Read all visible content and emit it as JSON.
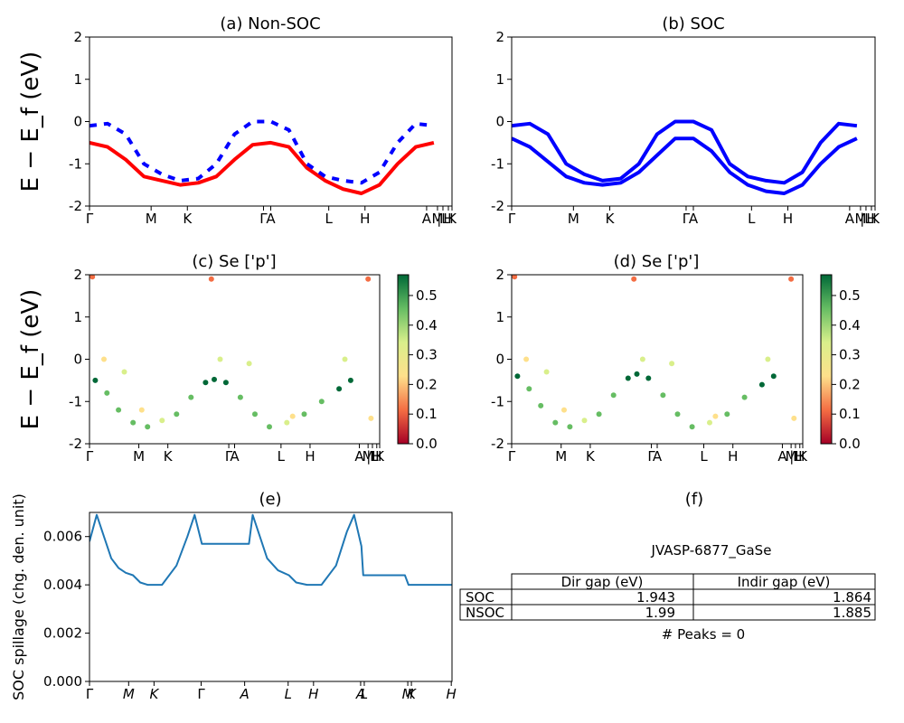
{
  "chart_data": [
    {
      "id": "a",
      "type": "line",
      "title": "(a) Non-SOC",
      "ylabel": "E − E_f (eV)",
      "ylim": [
        -2,
        2
      ],
      "yticks": [
        2,
        1,
        0,
        -1,
        -2
      ],
      "xticklabels": [
        "Γ",
        "M",
        "K",
        "Γ",
        "A",
        "L",
        "H",
        "A",
        "M",
        "|L",
        "H",
        "K"
      ],
      "series": [
        {
          "color": "#ff0000",
          "style": "solid",
          "points": [
            [
              0,
              -0.5
            ],
            [
              0.05,
              -0.6
            ],
            [
              0.1,
              -0.9
            ],
            [
              0.15,
              -1.3
            ],
            [
              0.2,
              -1.4
            ],
            [
              0.25,
              -1.5
            ],
            [
              0.3,
              -1.45
            ],
            [
              0.35,
              -1.3
            ],
            [
              0.4,
              -0.9
            ],
            [
              0.45,
              -0.55
            ],
            [
              0.5,
              -0.5
            ],
            [
              0.55,
              -0.6
            ],
            [
              0.6,
              -1.1
            ],
            [
              0.65,
              -1.4
            ],
            [
              0.7,
              -1.6
            ],
            [
              0.75,
              -1.7
            ],
            [
              0.8,
              -1.5
            ],
            [
              0.85,
              -1.0
            ],
            [
              0.9,
              -0.6
            ],
            [
              0.95,
              -0.5
            ]
          ]
        },
        {
          "color": "#0000ff",
          "style": "dashed",
          "points": [
            [
              0,
              -0.1
            ],
            [
              0.05,
              -0.05
            ],
            [
              0.1,
              -0.3
            ],
            [
              0.15,
              -1.0
            ],
            [
              0.2,
              -1.25
            ],
            [
              0.25,
              -1.4
            ],
            [
              0.3,
              -1.35
            ],
            [
              0.35,
              -1.0
            ],
            [
              0.4,
              -0.3
            ],
            [
              0.45,
              0.0
            ],
            [
              0.5,
              0.0
            ],
            [
              0.55,
              -0.2
            ],
            [
              0.6,
              -1.0
            ],
            [
              0.65,
              -1.3
            ],
            [
              0.7,
              -1.4
            ],
            [
              0.75,
              -1.45
            ],
            [
              0.8,
              -1.2
            ],
            [
              0.85,
              -0.5
            ],
            [
              0.9,
              -0.05
            ],
            [
              0.95,
              -0.1
            ]
          ]
        }
      ]
    },
    {
      "id": "b",
      "type": "line",
      "title": "(b) SOC",
      "ylim": [
        -2,
        2
      ],
      "yticks": [
        2,
        1,
        0,
        -1,
        -2
      ],
      "xticklabels": [
        "Γ",
        "M",
        "K",
        "Γ",
        "A",
        "L",
        "H",
        "A",
        "M",
        "|L",
        "H",
        "K"
      ],
      "series": [
        {
          "color": "#0000ff",
          "style": "solid",
          "points": [
            [
              0,
              -0.4
            ],
            [
              0.05,
              -0.6
            ],
            [
              0.1,
              -0.95
            ],
            [
              0.15,
              -1.3
            ],
            [
              0.2,
              -1.45
            ],
            [
              0.25,
              -1.5
            ],
            [
              0.3,
              -1.45
            ],
            [
              0.35,
              -1.2
            ],
            [
              0.4,
              -0.8
            ],
            [
              0.45,
              -0.4
            ],
            [
              0.5,
              -0.4
            ],
            [
              0.55,
              -0.7
            ],
            [
              0.6,
              -1.2
            ],
            [
              0.65,
              -1.5
            ],
            [
              0.7,
              -1.65
            ],
            [
              0.75,
              -1.7
            ],
            [
              0.8,
              -1.5
            ],
            [
              0.85,
              -1.0
            ],
            [
              0.9,
              -0.6
            ],
            [
              0.95,
              -0.4
            ]
          ]
        },
        {
          "color": "#0000ff",
          "style": "solid",
          "points": [
            [
              0,
              -0.1
            ],
            [
              0.05,
              -0.05
            ],
            [
              0.1,
              -0.3
            ],
            [
              0.15,
              -1.0
            ],
            [
              0.2,
              -1.25
            ],
            [
              0.25,
              -1.4
            ],
            [
              0.3,
              -1.35
            ],
            [
              0.35,
              -1.0
            ],
            [
              0.4,
              -0.3
            ],
            [
              0.45,
              0.0
            ],
            [
              0.5,
              0.0
            ],
            [
              0.55,
              -0.2
            ],
            [
              0.6,
              -1.0
            ],
            [
              0.65,
              -1.3
            ],
            [
              0.7,
              -1.4
            ],
            [
              0.75,
              -1.45
            ],
            [
              0.8,
              -1.2
            ],
            [
              0.85,
              -0.5
            ],
            [
              0.9,
              -0.05
            ],
            [
              0.95,
              -0.1
            ]
          ]
        }
      ]
    },
    {
      "id": "c",
      "type": "scatter",
      "title": "(c)  Se ['p']",
      "ylabel": "E − E_f (eV)",
      "ylim": [
        -2,
        2
      ],
      "yticks": [
        2,
        1,
        0,
        -1,
        -2
      ],
      "xticklabels": [
        "Γ",
        "M",
        "K",
        "Γ",
        "A",
        "L",
        "H",
        "A",
        "M",
        "|L",
        "H",
        "K"
      ],
      "colorbar": {
        "ticks": [
          "0.0",
          "0.1",
          "0.2",
          "0.3",
          "0.4",
          "0.5"
        ],
        "colors": [
          "#a50026",
          "#f46d43",
          "#fee08b",
          "#d9ef8b",
          "#66bd63",
          "#006837"
        ]
      },
      "points": [
        [
          0.02,
          -0.5,
          0.52
        ],
        [
          0.06,
          -0.8,
          0.5
        ],
        [
          0.1,
          -1.2,
          0.45
        ],
        [
          0.15,
          -1.5,
          0.42
        ],
        [
          0.2,
          -1.6,
          0.42
        ],
        [
          0.25,
          -1.45,
          0.38
        ],
        [
          0.3,
          -1.3,
          0.4
        ],
        [
          0.35,
          -0.9,
          0.47
        ],
        [
          0.4,
          -0.55,
          0.53
        ],
        [
          0.43,
          -0.48,
          0.56
        ],
        [
          0.47,
          -0.55,
          0.52
        ],
        [
          0.52,
          -0.9,
          0.48
        ],
        [
          0.57,
          -1.3,
          0.42
        ],
        [
          0.62,
          -1.6,
          0.4
        ],
        [
          0.68,
          -1.5,
          0.38
        ],
        [
          0.74,
          -1.3,
          0.4
        ],
        [
          0.8,
          -1.0,
          0.47
        ],
        [
          0.86,
          -0.7,
          0.52
        ],
        [
          0.9,
          -0.5,
          0.55
        ],
        [
          0.05,
          0.0,
          0.28
        ],
        [
          0.12,
          -0.3,
          0.3
        ],
        [
          0.18,
          -1.2,
          0.25
        ],
        [
          0.45,
          0.0,
          0.32
        ],
        [
          0.55,
          -0.1,
          0.3
        ],
        [
          0.7,
          -1.35,
          0.2
        ],
        [
          0.88,
          0.0,
          0.3
        ],
        [
          0.97,
          -1.4,
          0.2
        ],
        [
          0.01,
          1.95,
          0.15
        ],
        [
          0.42,
          1.9,
          0.12
        ],
        [
          0.96,
          1.9,
          0.12
        ]
      ]
    },
    {
      "id": "d",
      "type": "scatter",
      "title": "(d) Se ['p']",
      "ylim": [
        -2,
        2
      ],
      "yticks": [
        2,
        1,
        0,
        -1,
        -2
      ],
      "xticklabels": [
        "Γ",
        "M",
        "K",
        "Γ",
        "A",
        "L",
        "H",
        "A",
        "M",
        "|L",
        "H",
        "K"
      ],
      "colorbar": {
        "ticks": [
          "0.0",
          "0.1",
          "0.2",
          "0.3",
          "0.4",
          "0.5"
        ],
        "colors": [
          "#a50026",
          "#f46d43",
          "#fee08b",
          "#d9ef8b",
          "#66bd63",
          "#006837"
        ]
      },
      "points": [
        [
          0.02,
          -0.4,
          0.52
        ],
        [
          0.06,
          -0.7,
          0.5
        ],
        [
          0.1,
          -1.1,
          0.45
        ],
        [
          0.15,
          -1.5,
          0.42
        ],
        [
          0.2,
          -1.6,
          0.42
        ],
        [
          0.25,
          -1.45,
          0.38
        ],
        [
          0.3,
          -1.3,
          0.4
        ],
        [
          0.35,
          -0.85,
          0.47
        ],
        [
          0.4,
          -0.45,
          0.53
        ],
        [
          0.43,
          -0.35,
          0.56
        ],
        [
          0.47,
          -0.45,
          0.52
        ],
        [
          0.52,
          -0.85,
          0.48
        ],
        [
          0.57,
          -1.3,
          0.42
        ],
        [
          0.62,
          -1.6,
          0.4
        ],
        [
          0.68,
          -1.5,
          0.38
        ],
        [
          0.74,
          -1.3,
          0.4
        ],
        [
          0.8,
          -0.9,
          0.47
        ],
        [
          0.86,
          -0.6,
          0.52
        ],
        [
          0.9,
          -0.4,
          0.55
        ],
        [
          0.05,
          0.0,
          0.28
        ],
        [
          0.12,
          -0.3,
          0.3
        ],
        [
          0.18,
          -1.2,
          0.25
        ],
        [
          0.45,
          0.0,
          0.32
        ],
        [
          0.55,
          -0.1,
          0.3
        ],
        [
          0.7,
          -1.35,
          0.2
        ],
        [
          0.88,
          0.0,
          0.3
        ],
        [
          0.97,
          -1.4,
          0.2
        ],
        [
          0.01,
          1.95,
          0.15
        ],
        [
          0.42,
          1.9,
          0.12
        ],
        [
          0.96,
          1.9,
          0.12
        ]
      ]
    },
    {
      "id": "e",
      "type": "line",
      "title": "(e)",
      "ylabel": "SOC spillage (chg. den. unit)",
      "ylim": [
        0,
        0.007
      ],
      "yticks": [
        "0.000",
        "0.002",
        "0.004",
        "0.006"
      ],
      "xticklabels": [
        "Γ",
        "M",
        "K",
        "Γ",
        "A",
        "L",
        "H",
        "A",
        "L",
        "M",
        "K",
        "H"
      ],
      "series": [
        {
          "color": "#1f77b4",
          "points": [
            [
              0,
              0.0058
            ],
            [
              0.02,
              0.0069
            ],
            [
              0.04,
              0.006
            ],
            [
              0.06,
              0.0051
            ],
            [
              0.08,
              0.0047
            ],
            [
              0.1,
              0.0045
            ],
            [
              0.12,
              0.0044
            ],
            [
              0.14,
              0.0041
            ],
            [
              0.16,
              0.004
            ],
            [
              0.2,
              0.004
            ],
            [
              0.24,
              0.0048
            ],
            [
              0.27,
              0.006
            ],
            [
              0.29,
              0.0069
            ],
            [
              0.31,
              0.0057
            ],
            [
              0.35,
              0.0057
            ],
            [
              0.4,
              0.0057
            ],
            [
              0.44,
              0.0057
            ],
            [
              0.45,
              0.0069
            ],
            [
              0.47,
              0.006
            ],
            [
              0.49,
              0.0051
            ],
            [
              0.52,
              0.0046
            ],
            [
              0.55,
              0.0044
            ],
            [
              0.57,
              0.0041
            ],
            [
              0.6,
              0.004
            ],
            [
              0.64,
              0.004
            ],
            [
              0.68,
              0.0048
            ],
            [
              0.71,
              0.0062
            ],
            [
              0.73,
              0.0069
            ],
            [
              0.75,
              0.0056
            ],
            [
              0.755,
              0.0044
            ],
            [
              0.8,
              0.0044
            ],
            [
              0.87,
              0.0044
            ],
            [
              0.88,
              0.004
            ],
            [
              1.0,
              0.004
            ]
          ]
        }
      ]
    }
  ],
  "panel_f": {
    "title": "(f)",
    "material": "JVASP-6877_GaSe",
    "table": {
      "headers": [
        "",
        "Dir gap (eV)",
        "Indir gap (eV)"
      ],
      "rows": [
        [
          "SOC",
          "1.943",
          "1.864"
        ],
        [
          "NSOC",
          "1.99",
          "1.885"
        ]
      ]
    },
    "peaks": "# Peaks = 0"
  }
}
